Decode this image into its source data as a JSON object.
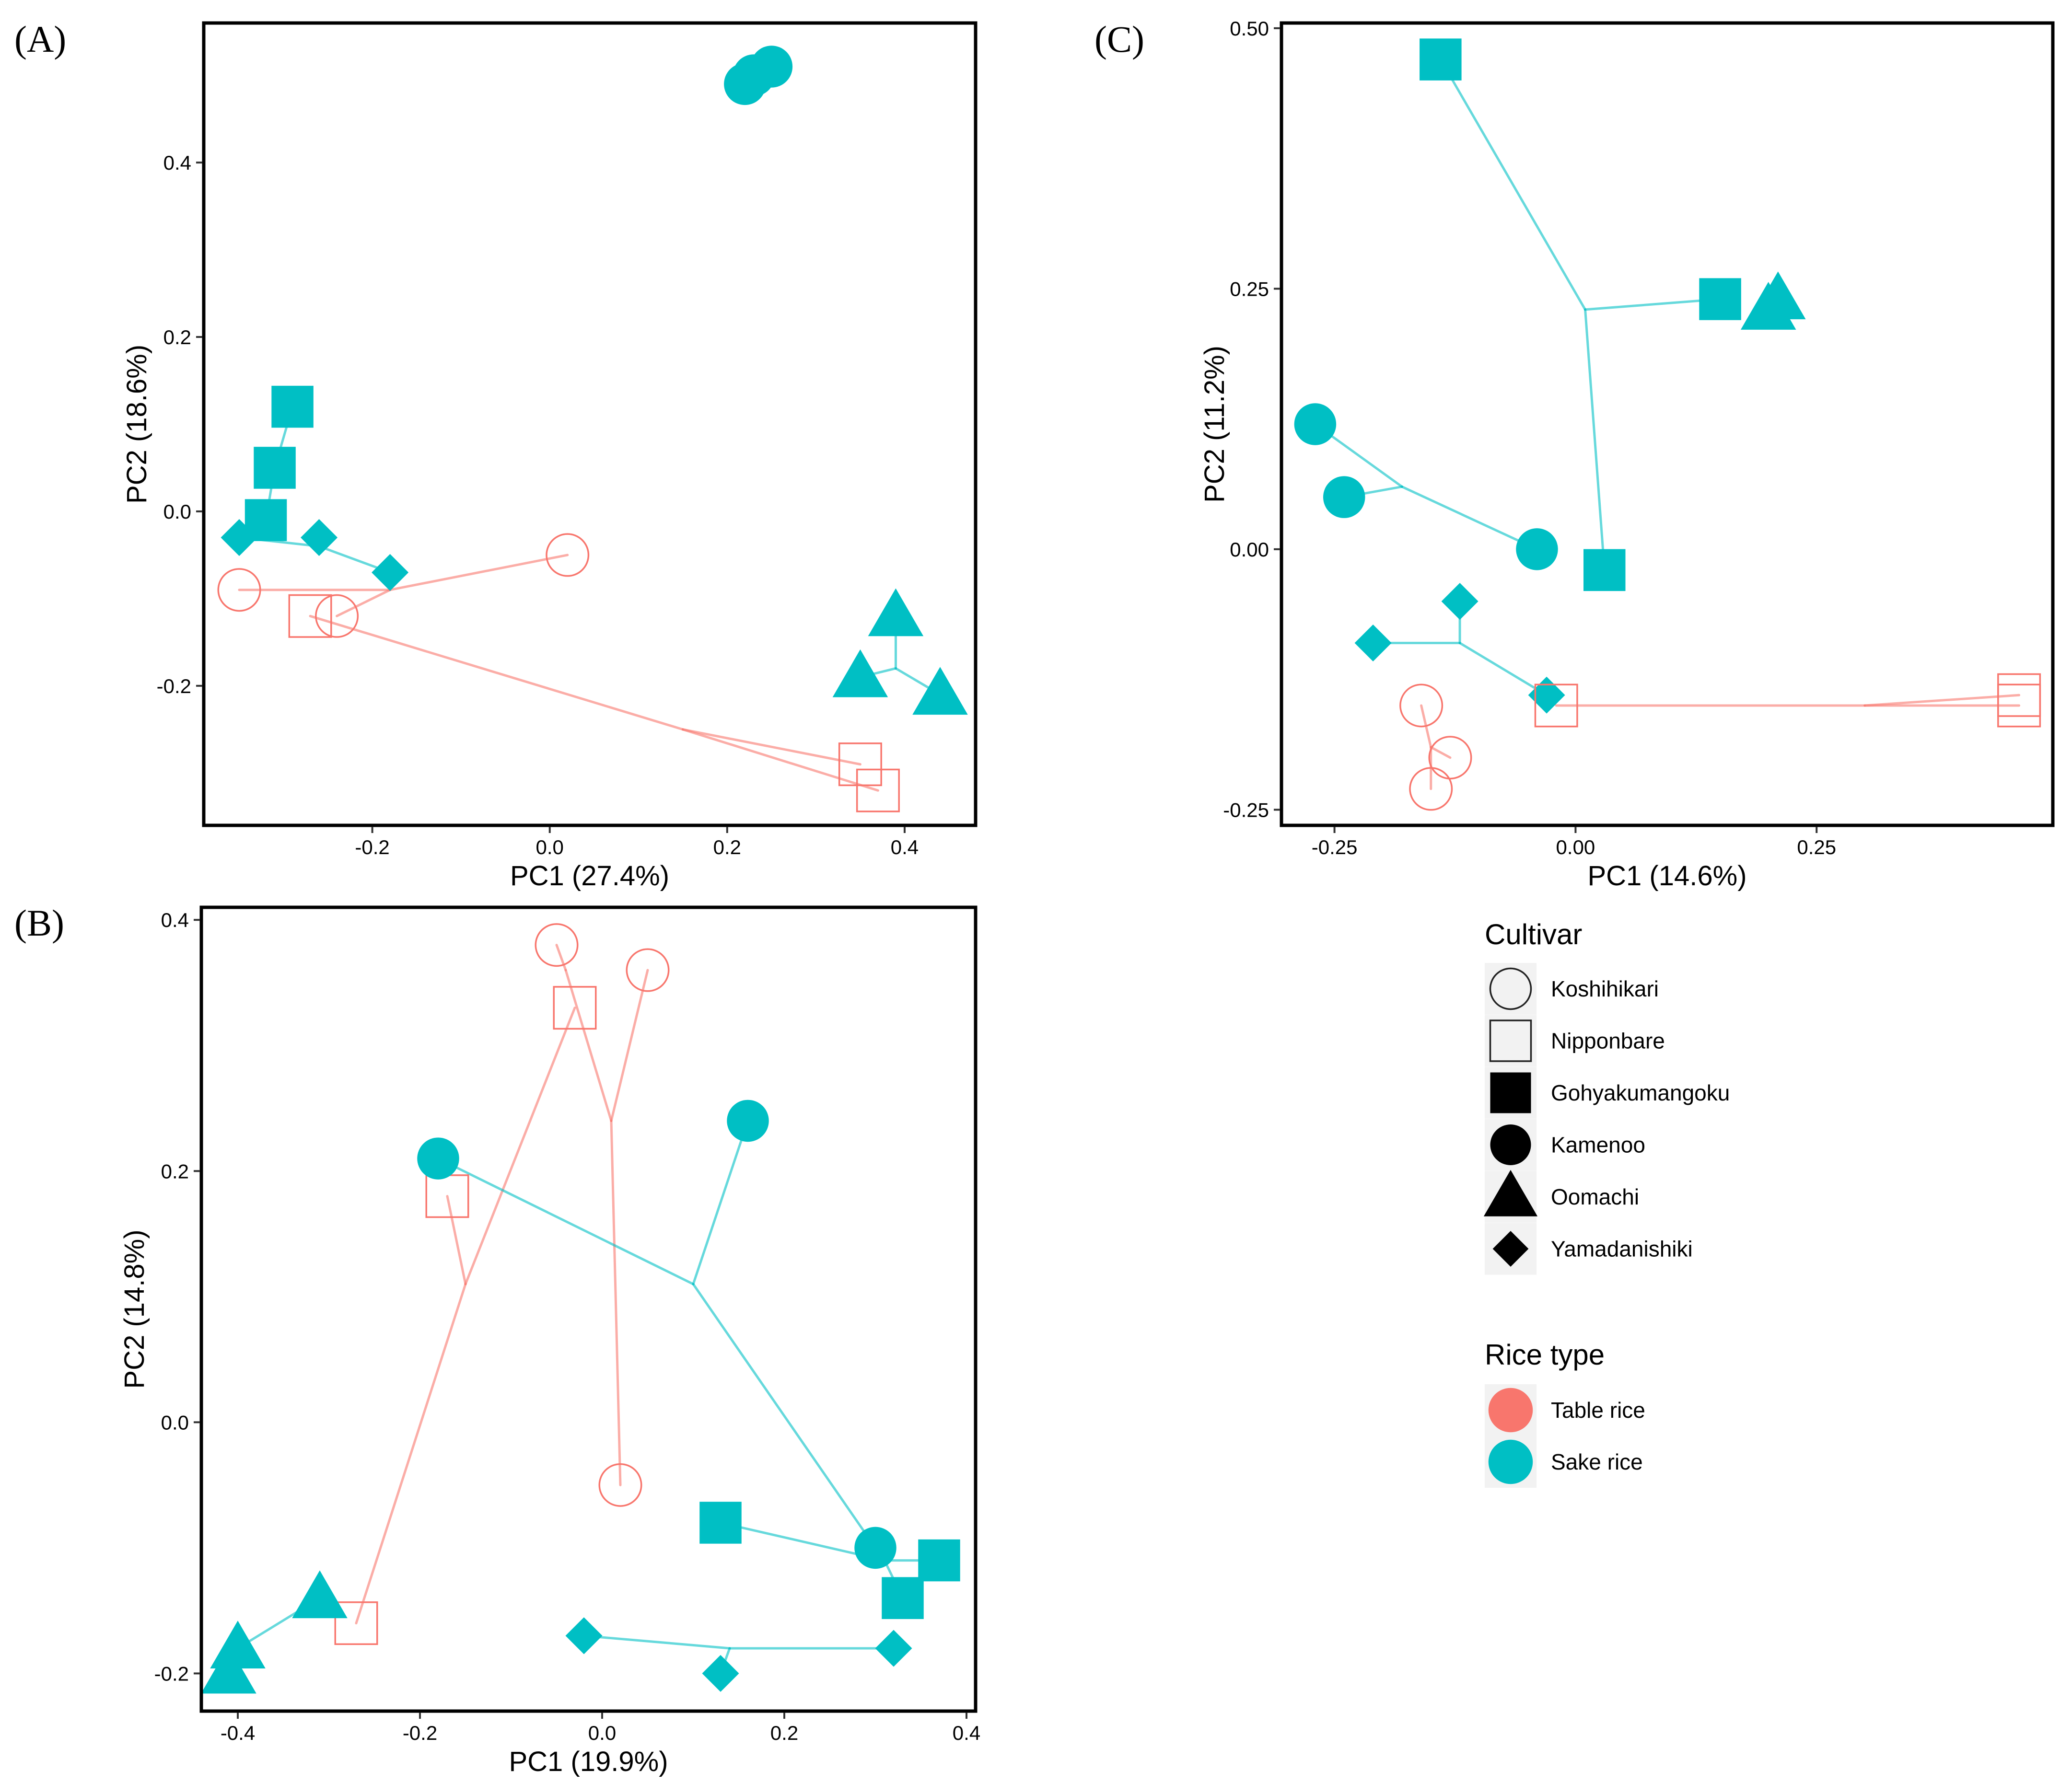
{
  "colors": {
    "Table rice": "#F8766D",
    "Sake rice": "#00BFC4"
  },
  "chart_data": [
    {
      "panel": "(A)",
      "type": "scatter",
      "xlabel": "PC1 (27.4%)",
      "ylabel": "PC2 (18.6%)",
      "xlim": [
        -0.39,
        0.48
      ],
      "ylim": [
        -0.36,
        0.56
      ],
      "xticks": [
        -0.2,
        0.0,
        0.2,
        0.4
      ],
      "xtick_labels": [
        "-0.2",
        "0.0",
        "0.2",
        "0.4"
      ],
      "yticks": [
        -0.2,
        0.0,
        0.2,
        0.4
      ],
      "ytick_labels": [
        "-0.2",
        "0.0",
        "0.2",
        "0.4"
      ],
      "points": [
        {
          "cultivar": "Kamenoo",
          "rice_type": "Sake rice",
          "x": 0.22,
          "y": 0.49
        },
        {
          "cultivar": "Kamenoo",
          "rice_type": "Sake rice",
          "x": 0.23,
          "y": 0.5
        },
        {
          "cultivar": "Kamenoo",
          "rice_type": "Sake rice",
          "x": 0.25,
          "y": 0.51
        },
        {
          "cultivar": "Gohyakumangoku",
          "rice_type": "Sake rice",
          "x": -0.29,
          "y": 0.12
        },
        {
          "cultivar": "Gohyakumangoku",
          "rice_type": "Sake rice",
          "x": -0.31,
          "y": 0.05
        },
        {
          "cultivar": "Gohyakumangoku",
          "rice_type": "Sake rice",
          "x": -0.32,
          "y": -0.01
        },
        {
          "cultivar": "Yamadanishiki",
          "rice_type": "Sake rice",
          "x": -0.35,
          "y": -0.03
        },
        {
          "cultivar": "Yamadanishiki",
          "rice_type": "Sake rice",
          "x": -0.26,
          "y": -0.03
        },
        {
          "cultivar": "Yamadanishiki",
          "rice_type": "Sake rice",
          "x": -0.18,
          "y": -0.07
        },
        {
          "cultivar": "Oomachi",
          "rice_type": "Sake rice",
          "x": 0.39,
          "y": -0.12
        },
        {
          "cultivar": "Oomachi",
          "rice_type": "Sake rice",
          "x": 0.35,
          "y": -0.19
        },
        {
          "cultivar": "Oomachi",
          "rice_type": "Sake rice",
          "x": 0.44,
          "y": -0.21
        },
        {
          "cultivar": "Koshihikari",
          "rice_type": "Table rice",
          "x": -0.35,
          "y": -0.09
        },
        {
          "cultivar": "Koshihikari",
          "rice_type": "Table rice",
          "x": -0.24,
          "y": -0.12
        },
        {
          "cultivar": "Koshihikari",
          "rice_type": "Table rice",
          "x": 0.02,
          "y": -0.05
        },
        {
          "cultivar": "Nipponbare",
          "rice_type": "Table rice",
          "x": -0.27,
          "y": -0.12
        },
        {
          "cultivar": "Nipponbare",
          "rice_type": "Table rice",
          "x": 0.35,
          "y": -0.29
        },
        {
          "cultivar": "Nipponbare",
          "rice_type": "Table rice",
          "x": 0.37,
          "y": -0.32
        }
      ],
      "tree_edges": [
        {
          "rice_type": "Sake rice",
          "from": [
            -0.29,
            0.12
          ],
          "to": [
            -0.31,
            0.05
          ]
        },
        {
          "rice_type": "Sake rice",
          "from": [
            -0.31,
            0.05
          ],
          "to": [
            -0.32,
            -0.01
          ]
        },
        {
          "rice_type": "Sake rice",
          "from": [
            -0.35,
            -0.03
          ],
          "to": [
            -0.26,
            -0.04
          ]
        },
        {
          "rice_type": "Sake rice",
          "from": [
            -0.26,
            -0.04
          ],
          "to": [
            -0.26,
            -0.03
          ]
        },
        {
          "rice_type": "Sake rice",
          "from": [
            -0.26,
            -0.04
          ],
          "to": [
            -0.18,
            -0.07
          ]
        },
        {
          "rice_type": "Sake rice",
          "from": [
            0.39,
            -0.12
          ],
          "to": [
            0.39,
            -0.18
          ]
        },
        {
          "rice_type": "Sake rice",
          "from": [
            0.39,
            -0.18
          ],
          "to": [
            0.35,
            -0.19
          ]
        },
        {
          "rice_type": "Sake rice",
          "from": [
            0.39,
            -0.18
          ],
          "to": [
            0.44,
            -0.21
          ]
        },
        {
          "rice_type": "Table rice",
          "from": [
            -0.35,
            -0.09
          ],
          "to": [
            -0.18,
            -0.09
          ]
        },
        {
          "rice_type": "Table rice",
          "from": [
            -0.18,
            -0.09
          ],
          "to": [
            0.02,
            -0.05
          ]
        },
        {
          "rice_type": "Table rice",
          "from": [
            -0.18,
            -0.09
          ],
          "to": [
            -0.24,
            -0.12
          ]
        },
        {
          "rice_type": "Table rice",
          "from": [
            -0.27,
            -0.12
          ],
          "to": [
            0.15,
            -0.25
          ]
        },
        {
          "rice_type": "Table rice",
          "from": [
            0.15,
            -0.25
          ],
          "to": [
            0.35,
            -0.29
          ]
        },
        {
          "rice_type": "Table rice",
          "from": [
            0.15,
            -0.25
          ],
          "to": [
            0.37,
            -0.32
          ]
        }
      ]
    },
    {
      "panel": "(B)",
      "type": "scatter",
      "xlabel": "PC1 (19.9%)",
      "ylabel": "PC2 (14.8%)",
      "xlim": [
        -0.44,
        0.41
      ],
      "ylim": [
        -0.23,
        0.41
      ],
      "xticks": [
        -0.4,
        -0.2,
        0.0,
        0.2,
        0.4
      ],
      "xtick_labels": [
        "-0.4",
        "-0.2",
        "0.0",
        "0.2",
        "0.4"
      ],
      "yticks": [
        -0.2,
        0.0,
        0.2,
        0.4
      ],
      "ytick_labels": [
        "-0.2",
        "0.0",
        "0.2",
        "0.4"
      ],
      "points": [
        {
          "cultivar": "Koshihikari",
          "rice_type": "Table rice",
          "x": -0.05,
          "y": 0.38
        },
        {
          "cultivar": "Koshihikari",
          "rice_type": "Table rice",
          "x": 0.05,
          "y": 0.36
        },
        {
          "cultivar": "Koshihikari",
          "rice_type": "Table rice",
          "x": 0.02,
          "y": -0.05
        },
        {
          "cultivar": "Nipponbare",
          "rice_type": "Table rice",
          "x": -0.03,
          "y": 0.33
        },
        {
          "cultivar": "Nipponbare",
          "rice_type": "Table rice",
          "x": -0.17,
          "y": 0.18
        },
        {
          "cultivar": "Nipponbare",
          "rice_type": "Table rice",
          "x": -0.27,
          "y": -0.16
        },
        {
          "cultivar": "Kamenoo",
          "rice_type": "Sake rice",
          "x": -0.18,
          "y": 0.21
        },
        {
          "cultivar": "Kamenoo",
          "rice_type": "Sake rice",
          "x": 0.16,
          "y": 0.24
        },
        {
          "cultivar": "Kamenoo",
          "rice_type": "Sake rice",
          "x": 0.3,
          "y": -0.1
        },
        {
          "cultivar": "Gohyakumangoku",
          "rice_type": "Sake rice",
          "x": 0.13,
          "y": -0.08
        },
        {
          "cultivar": "Gohyakumangoku",
          "rice_type": "Sake rice",
          "x": 0.37,
          "y": -0.11
        },
        {
          "cultivar": "Gohyakumangoku",
          "rice_type": "Sake rice",
          "x": 0.33,
          "y": -0.14
        },
        {
          "cultivar": "Oomachi",
          "rice_type": "Sake rice",
          "x": -0.31,
          "y": -0.14
        },
        {
          "cultivar": "Oomachi",
          "rice_type": "Sake rice",
          "x": -0.4,
          "y": -0.18
        },
        {
          "cultivar": "Oomachi",
          "rice_type": "Sake rice",
          "x": -0.41,
          "y": -0.2
        },
        {
          "cultivar": "Yamadanishiki",
          "rice_type": "Sake rice",
          "x": -0.02,
          "y": -0.17
        },
        {
          "cultivar": "Yamadanishiki",
          "rice_type": "Sake rice",
          "x": 0.32,
          "y": -0.18
        },
        {
          "cultivar": "Yamadanishiki",
          "rice_type": "Sake rice",
          "x": 0.13,
          "y": -0.2
        }
      ],
      "tree_edges": [
        {
          "rice_type": "Table rice",
          "from": [
            -0.05,
            0.38
          ],
          "to": [
            -0.04,
            0.36
          ]
        },
        {
          "rice_type": "Table rice",
          "from": [
            -0.04,
            0.36
          ],
          "to": [
            0.01,
            0.24
          ]
        },
        {
          "rice_type": "Table rice",
          "from": [
            0.05,
            0.36
          ],
          "to": [
            0.01,
            0.24
          ]
        },
        {
          "rice_type": "Table rice",
          "from": [
            0.01,
            0.24
          ],
          "to": [
            0.02,
            -0.05
          ]
        },
        {
          "rice_type": "Table rice",
          "from": [
            -0.03,
            0.33
          ],
          "to": [
            -0.15,
            0.11
          ]
        },
        {
          "rice_type": "Table rice",
          "from": [
            -0.17,
            0.18
          ],
          "to": [
            -0.15,
            0.11
          ]
        },
        {
          "rice_type": "Table rice",
          "from": [
            -0.15,
            0.11
          ],
          "to": [
            -0.27,
            -0.16
          ]
        },
        {
          "rice_type": "Sake rice",
          "from": [
            -0.18,
            0.21
          ],
          "to": [
            0.1,
            0.11
          ]
        },
        {
          "rice_type": "Sake rice",
          "from": [
            0.16,
            0.24
          ],
          "to": [
            0.1,
            0.11
          ]
        },
        {
          "rice_type": "Sake rice",
          "from": [
            0.1,
            0.11
          ],
          "to": [
            0.3,
            -0.1
          ]
        },
        {
          "rice_type": "Sake rice",
          "from": [
            0.13,
            -0.08
          ],
          "to": [
            0.31,
            -0.11
          ]
        },
        {
          "rice_type": "Sake rice",
          "from": [
            0.31,
            -0.11
          ],
          "to": [
            0.37,
            -0.11
          ]
        },
        {
          "rice_type": "Sake rice",
          "from": [
            0.31,
            -0.11
          ],
          "to": [
            0.33,
            -0.14
          ]
        },
        {
          "rice_type": "Sake rice",
          "from": [
            -0.31,
            -0.14
          ],
          "to": [
            -0.4,
            -0.18
          ]
        },
        {
          "rice_type": "Sake rice",
          "from": [
            -0.4,
            -0.18
          ],
          "to": [
            -0.41,
            -0.2
          ]
        },
        {
          "rice_type": "Sake rice",
          "from": [
            -0.02,
            -0.17
          ],
          "to": [
            0.14,
            -0.18
          ]
        },
        {
          "rice_type": "Sake rice",
          "from": [
            0.14,
            -0.18
          ],
          "to": [
            0.32,
            -0.18
          ]
        },
        {
          "rice_type": "Sake rice",
          "from": [
            0.14,
            -0.18
          ],
          "to": [
            0.13,
            -0.2
          ]
        }
      ]
    },
    {
      "panel": "(C)",
      "type": "scatter",
      "xlabel": "PC1 (14.6%)",
      "ylabel": "PC2 (11.2%)",
      "xlim": [
        -0.305,
        0.495
      ],
      "ylim": [
        -0.265,
        0.505
      ],
      "xticks": [
        -0.25,
        0.0,
        0.25
      ],
      "xtick_labels": [
        "-0.25",
        "0.00",
        "0.25"
      ],
      "yticks": [
        -0.25,
        0.0,
        0.25,
        0.5
      ],
      "ytick_labels": [
        "-0.25",
        "0.00",
        "0.25",
        "0.50"
      ],
      "points": [
        {
          "cultivar": "Gohyakumangoku",
          "rice_type": "Sake rice",
          "x": -0.14,
          "y": 0.47
        },
        {
          "cultivar": "Gohyakumangoku",
          "rice_type": "Sake rice",
          "x": 0.15,
          "y": 0.24
        },
        {
          "cultivar": "Gohyakumangoku",
          "rice_type": "Sake rice",
          "x": 0.03,
          "y": -0.02
        },
        {
          "cultivar": "Oomachi",
          "rice_type": "Sake rice",
          "x": 0.2,
          "y": 0.23
        },
        {
          "cultivar": "Oomachi",
          "rice_type": "Sake rice",
          "x": 0.21,
          "y": 0.24
        },
        {
          "cultivar": "Kamenoo",
          "rice_type": "Sake rice",
          "x": -0.27,
          "y": 0.12
        },
        {
          "cultivar": "Kamenoo",
          "rice_type": "Sake rice",
          "x": -0.24,
          "y": 0.05
        },
        {
          "cultivar": "Kamenoo",
          "rice_type": "Sake rice",
          "x": -0.04,
          "y": 0.0
        },
        {
          "cultivar": "Yamadanishiki",
          "rice_type": "Sake rice",
          "x": -0.12,
          "y": -0.05
        },
        {
          "cultivar": "Yamadanishiki",
          "rice_type": "Sake rice",
          "x": -0.21,
          "y": -0.09
        },
        {
          "cultivar": "Yamadanishiki",
          "rice_type": "Sake rice",
          "x": -0.03,
          "y": -0.14
        },
        {
          "cultivar": "Nipponbare",
          "rice_type": "Table rice",
          "x": -0.02,
          "y": -0.15
        },
        {
          "cultivar": "Nipponbare",
          "rice_type": "Table rice",
          "x": 0.46,
          "y": -0.14
        },
        {
          "cultivar": "Nipponbare",
          "rice_type": "Table rice",
          "x": 0.46,
          "y": -0.15
        },
        {
          "cultivar": "Koshihikari",
          "rice_type": "Table rice",
          "x": -0.16,
          "y": -0.15
        },
        {
          "cultivar": "Koshihikari",
          "rice_type": "Table rice",
          "x": -0.13,
          "y": -0.2
        },
        {
          "cultivar": "Koshihikari",
          "rice_type": "Table rice",
          "x": -0.15,
          "y": -0.23
        }
      ],
      "tree_edges": [
        {
          "rice_type": "Sake rice",
          "from": [
            -0.14,
            0.47
          ],
          "to": [
            0.01,
            0.23
          ]
        },
        {
          "rice_type": "Sake rice",
          "from": [
            0.01,
            0.23
          ],
          "to": [
            0.15,
            0.24
          ]
        },
        {
          "rice_type": "Sake rice",
          "from": [
            0.01,
            0.23
          ],
          "to": [
            0.03,
            -0.02
          ]
        },
        {
          "rice_type": "Sake rice",
          "from": [
            -0.27,
            0.12
          ],
          "to": [
            -0.18,
            0.06
          ]
        },
        {
          "rice_type": "Sake rice",
          "from": [
            -0.24,
            0.05
          ],
          "to": [
            -0.18,
            0.06
          ]
        },
        {
          "rice_type": "Sake rice",
          "from": [
            -0.18,
            0.06
          ],
          "to": [
            -0.04,
            0.0
          ]
        },
        {
          "rice_type": "Sake rice",
          "from": [
            -0.12,
            -0.05
          ],
          "to": [
            -0.12,
            -0.09
          ]
        },
        {
          "rice_type": "Sake rice",
          "from": [
            -0.21,
            -0.09
          ],
          "to": [
            -0.12,
            -0.09
          ]
        },
        {
          "rice_type": "Sake rice",
          "from": [
            -0.12,
            -0.09
          ],
          "to": [
            -0.03,
            -0.14
          ]
        },
        {
          "rice_type": "Table rice",
          "from": [
            -0.02,
            -0.15
          ],
          "to": [
            0.3,
            -0.15
          ]
        },
        {
          "rice_type": "Table rice",
          "from": [
            0.3,
            -0.15
          ],
          "to": [
            0.46,
            -0.14
          ]
        },
        {
          "rice_type": "Table rice",
          "from": [
            0.3,
            -0.15
          ],
          "to": [
            0.46,
            -0.15
          ]
        },
        {
          "rice_type": "Table rice",
          "from": [
            -0.16,
            -0.15
          ],
          "to": [
            -0.15,
            -0.19
          ]
        },
        {
          "rice_type": "Table rice",
          "from": [
            -0.15,
            -0.19
          ],
          "to": [
            -0.13,
            -0.2
          ]
        },
        {
          "rice_type": "Table rice",
          "from": [
            -0.15,
            -0.19
          ],
          "to": [
            -0.15,
            -0.23
          ]
        }
      ]
    }
  ],
  "legend": {
    "cultivar_title": "Cultivar",
    "cultivars": [
      {
        "label": "Koshihikari",
        "shape": "circle-open"
      },
      {
        "label": "Nipponbare",
        "shape": "square-open"
      },
      {
        "label": "Gohyakumangoku",
        "shape": "square"
      },
      {
        "label": "Kamenoo",
        "shape": "circle"
      },
      {
        "label": "Oomachi",
        "shape": "triangle"
      },
      {
        "label": "Yamadanishiki",
        "shape": "diamond"
      }
    ],
    "rice_type_title": "Rice type",
    "rice_types": [
      {
        "label": "Table rice",
        "color": "#F8766D"
      },
      {
        "label": "Sake rice",
        "color": "#00BFC4"
      }
    ]
  }
}
